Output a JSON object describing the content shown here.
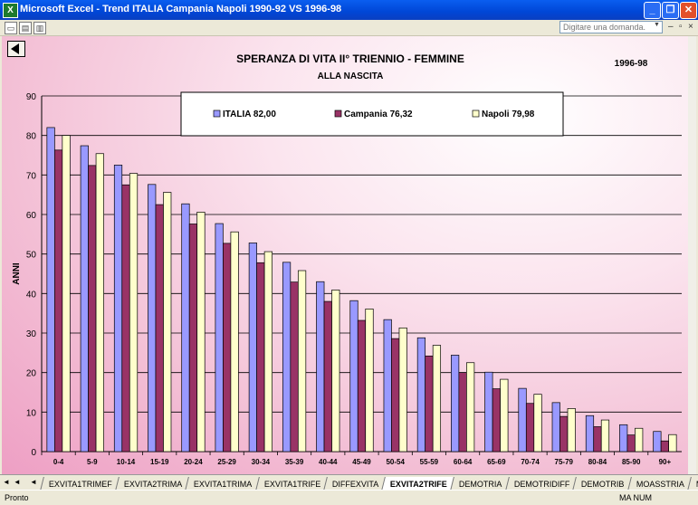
{
  "window": {
    "title": "Microsoft Excel - Trend ITALIA Campania Napoli 1990-92 VS 1996-98",
    "app_icon": "X",
    "minimize": "_",
    "restore": "❐",
    "close": "✕"
  },
  "toolbar": {
    "help_placeholder": "Digitare una domanda."
  },
  "chart_data": {
    "type": "bar",
    "title": "SPERANZA DI VITA II° TRIENNIO - FEMMINE",
    "subtitle": "ALLA NASCITA",
    "period": "1996-98",
    "ylabel": "ANNI",
    "xlabel": "",
    "ylim": [
      0,
      90
    ],
    "yticks": [
      "0",
      "10",
      "20",
      "30",
      "40",
      "50",
      "60",
      "70",
      "80",
      "90"
    ],
    "grid": true,
    "legend_position": "top",
    "categories": [
      "0-4",
      "5-9",
      "10-14",
      "15-19",
      "20-24",
      "25-29",
      "30-34",
      "35-39",
      "40-44",
      "45-49",
      "50-54",
      "55-59",
      "60-64",
      "65-69",
      "70-74",
      "75-79",
      "80-84",
      "85-90",
      "90+"
    ],
    "series": [
      {
        "name": "ITALIA 82,00",
        "color": "#9999ff",
        "values": [
          82.0,
          77.4,
          72.5,
          67.6,
          62.7,
          57.7,
          52.8,
          47.9,
          43.0,
          38.2,
          33.4,
          28.8,
          24.4,
          20.1,
          16.0,
          12.4,
          9.1,
          6.8,
          5.1
        ]
      },
      {
        "name": "Campania 76,32",
        "color": "#993366",
        "values": [
          76.3,
          72.4,
          67.5,
          62.5,
          57.6,
          52.7,
          47.8,
          42.9,
          38.0,
          33.2,
          28.6,
          24.2,
          20.0,
          15.9,
          12.2,
          8.9,
          6.3,
          4.2,
          2.7
        ]
      },
      {
        "name": "Napoli 79,98",
        "color": "#ffffcc",
        "values": [
          80.0,
          75.4,
          70.4,
          65.6,
          60.6,
          55.6,
          50.6,
          45.8,
          40.9,
          36.1,
          31.3,
          26.9,
          22.5,
          18.3,
          14.5,
          10.9,
          8.0,
          5.9,
          4.3
        ]
      }
    ]
  },
  "sheet_tabs": [
    "EXVITA1TRIMEF",
    "EXVITA2TRIMA",
    "EXVITA1TRIMA",
    "EXVITA1TRIFE",
    "DIFFEXVITA",
    "EXVITA2TRIFE",
    "DEMOTRIA",
    "DEMOTRIDIFF",
    "DEMOTRIB",
    "MOASSTRIA",
    "MO"
  ],
  "active_tab": 5,
  "tab_nav": "◄◄ ◄ ► ►►",
  "status": {
    "left": "Pronto",
    "right": "MA NUM"
  }
}
